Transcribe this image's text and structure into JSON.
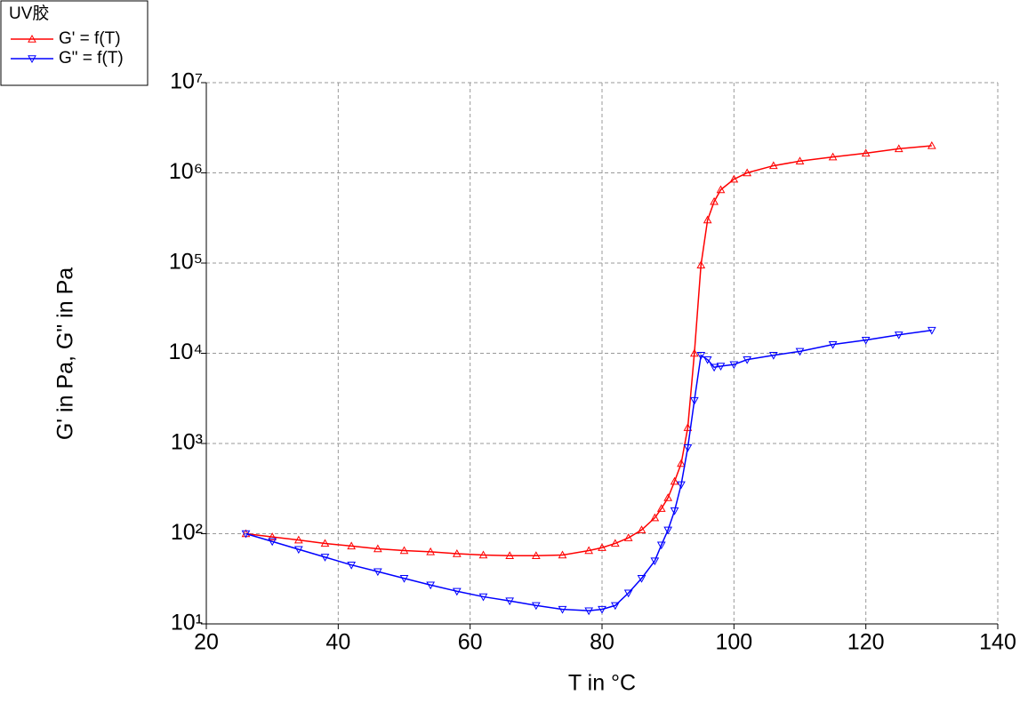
{
  "chart_data": {
    "type": "line",
    "legend_title": "UV胶",
    "x_label": "T in °C",
    "y_label": "G' in Pa, G\" in Pa",
    "x": [
      26,
      30,
      34,
      38,
      42,
      46,
      50,
      54,
      58,
      62,
      66,
      70,
      74,
      78,
      80,
      82,
      84,
      86,
      88,
      89,
      90,
      91,
      92,
      93,
      94,
      95,
      96,
      97,
      98,
      100,
      102,
      106,
      110,
      115,
      120,
      125,
      130
    ],
    "series": [
      {
        "name": "G' = f(T)",
        "color": "#ff0000",
        "marker": "triangle-up",
        "values": [
          100,
          92,
          85,
          78,
          73,
          68,
          65,
          63,
          60,
          58,
          57,
          57,
          58,
          65,
          70,
          78,
          90,
          110,
          150,
          190,
          250,
          380,
          600,
          1500,
          10000,
          95000,
          300000,
          480000,
          650000,
          850000,
          1000000,
          1200000,
          1350000,
          1500000,
          1650000,
          1850000,
          2000000
        ]
      },
      {
        "name": "G\" = f(T)",
        "color": "#0000ff",
        "marker": "triangle-down",
        "values": [
          100,
          82,
          67,
          55,
          45,
          38,
          32,
          27,
          23,
          20,
          18,
          16,
          14.5,
          14,
          14.5,
          16,
          22,
          32,
          50,
          75,
          110,
          180,
          350,
          900,
          3000,
          9500,
          8500,
          7000,
          7200,
          7500,
          8500,
          9500,
          10500,
          12500,
          14000,
          16000,
          18000
        ]
      }
    ],
    "xlim": [
      20,
      140
    ],
    "xticks": [
      20,
      40,
      60,
      80,
      100,
      120,
      140
    ],
    "ylim": [
      10,
      10000000
    ],
    "log_y": true,
    "yticks": [
      {
        "value": 10,
        "label": "10¹"
      },
      {
        "value": 100,
        "label": "10²"
      },
      {
        "value": 1000,
        "label": "10³"
      },
      {
        "value": 10000,
        "label": "10⁴"
      },
      {
        "value": 100000,
        "label": "10⁵"
      },
      {
        "value": 1000000,
        "label": "10⁶"
      },
      {
        "value": 10000000,
        "label": "10⁷"
      }
    ],
    "grid": true,
    "legend": "top-left"
  }
}
